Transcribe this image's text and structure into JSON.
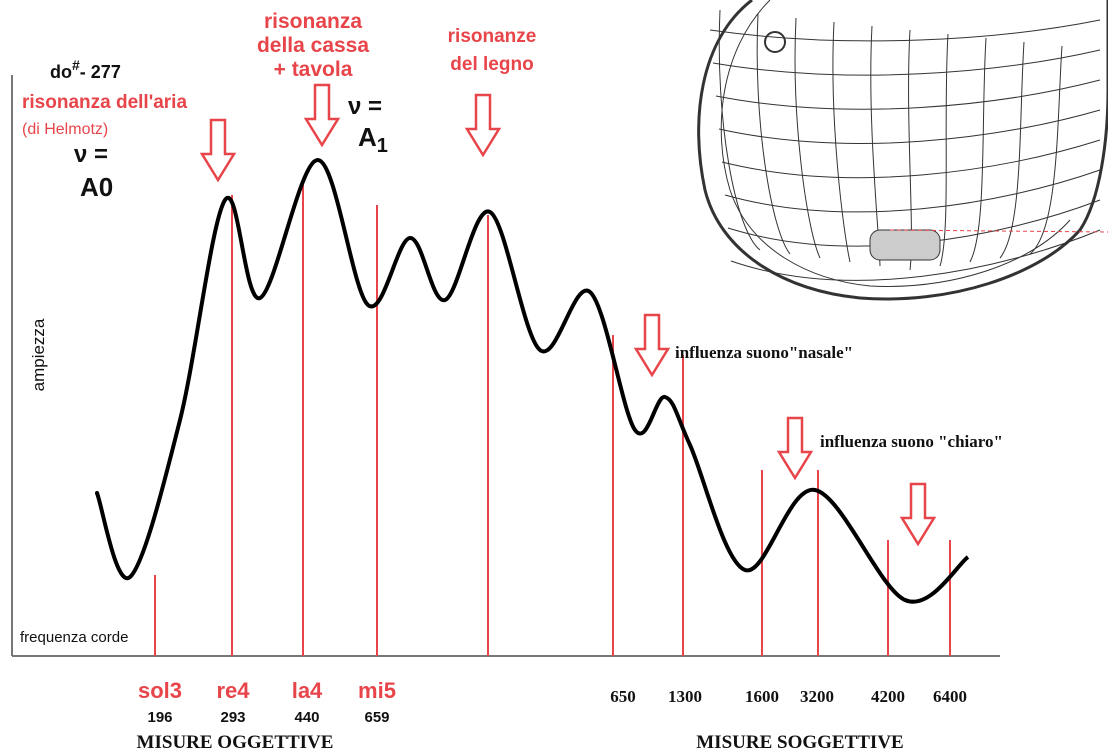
{
  "annotations": {
    "helmholtz": {
      "note": "do",
      "sharp": "#",
      "freq": "- 277",
      "title": "risonanza dell'aria",
      "subtitle": "(di Helmotz)",
      "nu": "ν =",
      "mode": "A0"
    },
    "body": {
      "line1": "risonanza",
      "line2": "della cassa",
      "line3": "+ tavola",
      "nu": "ν =",
      "mode": "A",
      "sub": "1"
    },
    "wood": {
      "line1": "risonanze",
      "line2": "del legno"
    },
    "nasal": "influenza suono\"nasale\"",
    "bright": "influenza suono \"chiaro\""
  },
  "axes": {
    "y_label": "ampiezza",
    "x_label": "frequenza corde"
  },
  "objective": {
    "notes": [
      "sol3",
      "re4",
      "la4",
      "mi5"
    ],
    "freqs": [
      "196",
      "293",
      "440",
      "659"
    ],
    "caption": "MISURE OGGETTIVE"
  },
  "subjective": {
    "freqs": [
      "650",
      "1300",
      "1600",
      "3200",
      "4200",
      "6400"
    ],
    "caption": "MISURE SOGGETTIVE"
  }
}
